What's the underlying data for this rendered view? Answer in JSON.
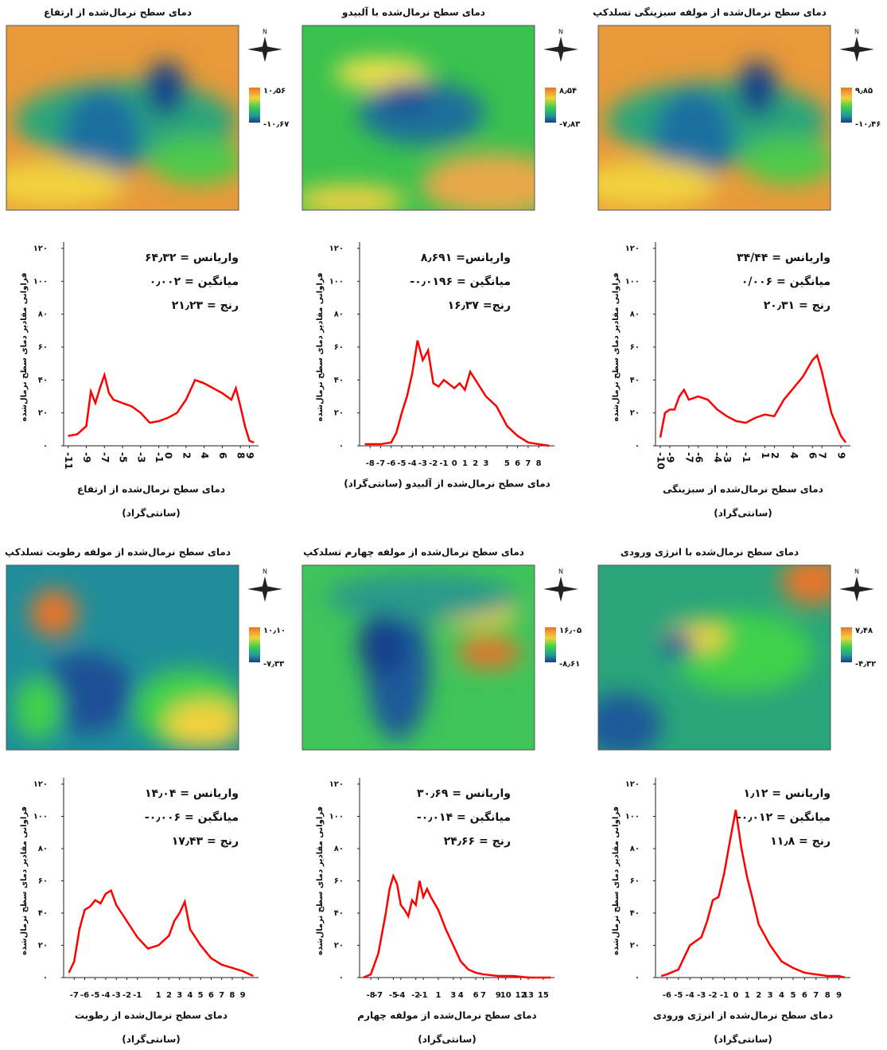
{
  "maps": [
    {
      "title": "دمای سطح نرمال‌شده از ارتفاع",
      "north": "N",
      "legend_max": "۱۰٫۵۶",
      "legend_min": "-۱۰٫۶۷"
    },
    {
      "title": "دمای سطح نرمال‌شده با آلبیدو",
      "north": "N",
      "legend_max": "۸٫۵۴",
      "legend_min": "-۷٫۸۳"
    },
    {
      "title": "دمای سطح نرمال‌شده از مولفه سبزینگی تسلدکپ",
      "north": "N",
      "legend_max": "۹٫۸۵",
      "legend_min": "-۱۰٫۴۶"
    },
    {
      "title": "دمای سطح نرمال‌شده از مولفه رطوبت تسلدکپ",
      "north": "N",
      "legend_max": "۱۰٫۱۰",
      "legend_min": "-۷٫۳۳"
    },
    {
      "title": "دمای سطح نرمال‌شده از مولفه چهارم تسلدکپ",
      "north": "N",
      "legend_max": "۱۶٫۰۵",
      "legend_min": "-۸٫۶۱"
    },
    {
      "title": "دمای سطح نرمال‌شده با انرژی ورودی",
      "north": "N",
      "legend_max": "۷٫۴۸",
      "legend_min": "-۴٫۳۲"
    }
  ],
  "chart_data": [
    {
      "type": "line",
      "color": "#ff0000",
      "ylabel": "فراوانی مقادیر دمای سطح نرمال‌شده",
      "xlabel": "دمای سطح نرمال‌شده از ارتفاع",
      "xunit": "(سانتی‌گراد)",
      "annotations": [
        "۶۴٫۳۲ = واریانس",
        "۰٫۰۰۲ = میانگین",
        "۲۱٫۲۳ = رنج"
      ],
      "x": [
        -11,
        -10,
        -9,
        -8.5,
        -8,
        -7.5,
        -7,
        -6.5,
        -6,
        -5,
        -4,
        -3,
        -2,
        -1,
        0,
        1,
        2,
        3,
        4,
        5,
        6,
        7,
        7.5,
        8,
        8.5,
        9,
        9.5
      ],
      "values": [
        6,
        7,
        12,
        33,
        26,
        35,
        43,
        32,
        28,
        26,
        24,
        20,
        14,
        15,
        17,
        20,
        28,
        40,
        38,
        35,
        32,
        28,
        35,
        24,
        12,
        3,
        2
      ],
      "xlim": [
        -11.5,
        10
      ],
      "xticks": [
        -11,
        -9,
        -7,
        -5,
        -3,
        -1,
        0,
        2,
        4,
        6,
        8,
        9
      ],
      "ylim": [
        0,
        120
      ],
      "yticks": [
        {
          "value": 0,
          "label": "٠"
        },
        {
          "value": 20,
          "label": "۲۰"
        },
        {
          "value": 40,
          "label": "۴۰"
        },
        {
          "value": 60,
          "label": "۶۰"
        },
        {
          "value": 80,
          "label": "۸۰"
        },
        {
          "value": 100,
          "label": "۱۰۰"
        },
        {
          "value": 120,
          "label": "۱۲۰"
        }
      ],
      "rotate_xticks": true
    },
    {
      "type": "line",
      "color": "#ff0000",
      "ylabel": "فراوانی مقادیر دمای سطح نرمال‌شده",
      "xlabel": "دمای سطح نرمال‌شده از آلبیدو (سانتی‌گراد)",
      "annotations": [
        "۸٫۶۹۱ =واریانس",
        "-۰٫۰۱۹۶ = میانگین",
        "۱۶٫۳۷ =رنج"
      ],
      "x": [
        -8.5,
        -7,
        -6,
        -5.5,
        -5,
        -4.5,
        -4,
        -3.5,
        -3,
        -2.5,
        -2,
        -1.5,
        -1,
        0,
        0.5,
        1,
        1.5,
        2,
        3,
        4,
        5,
        6,
        7,
        8,
        9
      ],
      "values": [
        1,
        1,
        2,
        8,
        20,
        30,
        44,
        64,
        52,
        58,
        38,
        36,
        40,
        35,
        38,
        34,
        45,
        40,
        30,
        24,
        12,
        6,
        2,
        1,
        0
      ],
      "xlim": [
        -9,
        9.5
      ],
      "xticks": [
        -8,
        -7,
        -6,
        -5,
        -4,
        -3,
        -2,
        -1,
        0,
        1,
        2,
        3,
        5,
        6,
        7,
        8
      ],
      "ylim": [
        0,
        120
      ],
      "yticks": [
        {
          "value": 0,
          "label": "٠"
        },
        {
          "value": 20,
          "label": "۲۰"
        },
        {
          "value": 40,
          "label": "۴۰"
        },
        {
          "value": 60,
          "label": "۶۰"
        },
        {
          "value": 80,
          "label": "۸۰"
        },
        {
          "value": 100,
          "label": "۱۰۰"
        },
        {
          "value": 120,
          "label": "۱۲۰"
        }
      ],
      "rotate_xticks": false
    },
    {
      "type": "line",
      "color": "#ff0000",
      "ylabel": "فراوانی مقادیر دمای سطح نرمال‌شده",
      "xlabel": "دمای سطح نرمال‌شده از سبزینگی",
      "xunit": "(سانتی‌گراد)",
      "annotations": [
        "۳۴/۴۴ = واریانس",
        "۰/۰۰۶ = میانگین",
        "۲۰٫۳۱ = رنج"
      ],
      "x": [
        -10,
        -9.5,
        -9,
        -8.5,
        -8,
        -7.5,
        -7,
        -6,
        -5,
        -4,
        -3,
        -2,
        -1,
        0,
        1,
        2,
        3,
        4,
        5,
        6,
        6.5,
        7,
        8,
        9,
        9.5
      ],
      "values": [
        5,
        20,
        22,
        22,
        30,
        34,
        28,
        30,
        28,
        22,
        18,
        15,
        14,
        17,
        19,
        18,
        28,
        35,
        42,
        52,
        55,
        45,
        20,
        6,
        2
      ],
      "xlim": [
        -10.5,
        10
      ],
      "xticks": [
        -10,
        -9,
        -7,
        -6,
        -4,
        -3,
        -1,
        1,
        2,
        4,
        6,
        7,
        9
      ],
      "ylim": [
        0,
        120
      ],
      "yticks": [
        {
          "value": 0,
          "label": "٠"
        },
        {
          "value": 20,
          "label": "۲۰"
        },
        {
          "value": 40,
          "label": "۴۰"
        },
        {
          "value": 60,
          "label": "۶۰"
        },
        {
          "value": 80,
          "label": "۸۰"
        },
        {
          "value": 100,
          "label": "۱۰۰"
        },
        {
          "value": 120,
          "label": "۱۲۰"
        }
      ],
      "rotate_xticks": true
    },
    {
      "type": "line",
      "color": "#ff0000",
      "ylabel": "فراوانی مقادیر دمای سطح نرمال‌شده",
      "xlabel": "دمای سطح نرمال‌شده از رطوبت",
      "xunit": "(سانتی‌گراد)",
      "annotations": [
        "۱۴٫۰۴ = واریانس",
        "-۰٫۰۰۶ = میانگین",
        "۱۷٫۴۳ = رنج"
      ],
      "x": [
        -7.5,
        -7,
        -6.5,
        -6,
        -5.5,
        -5,
        -4.5,
        -4,
        -3.5,
        -3,
        -2.5,
        -2,
        -1,
        0,
        1,
        2,
        2.5,
        3,
        3.5,
        4,
        5,
        6,
        7,
        8,
        9,
        10
      ],
      "values": [
        3,
        10,
        30,
        42,
        44,
        48,
        46,
        52,
        54,
        45,
        40,
        35,
        25,
        18,
        20,
        26,
        35,
        40,
        47,
        30,
        20,
        12,
        8,
        6,
        4,
        1
      ],
      "xlim": [
        -8,
        10.5
      ],
      "xticks": [
        -7,
        -6,
        -5,
        -4,
        -3,
        -2,
        -1,
        1,
        2,
        3,
        4,
        5,
        6,
        7,
        8,
        9
      ],
      "ylim": [
        0,
        120
      ],
      "yticks": [
        {
          "value": 0,
          "label": "٠"
        },
        {
          "value": 20,
          "label": "۲۰"
        },
        {
          "value": 40,
          "label": "۴۰"
        },
        {
          "value": 60,
          "label": "۶۰"
        },
        {
          "value": 80,
          "label": "۸۰"
        },
        {
          "value": 100,
          "label": "۱۰۰"
        },
        {
          "value": 120,
          "label": "۱۲۰"
        }
      ],
      "rotate_xticks": false
    },
    {
      "type": "line",
      "color": "#ff0000",
      "ylabel": "فراوانی مقادیر دمای سطح نرمال‌شده",
      "xlabel": "دمای سطح نرمال‌شده از مولفه چهارم",
      "xunit": "(سانتی‌گراد)",
      "annotations": [
        "۳۰٫۶۹ = واریانس",
        "-۰٫۰۱۴ = میانگین",
        "۲۴٫۶۶ = رنج"
      ],
      "x": [
        -9,
        -8,
        -7,
        -6,
        -5.5,
        -5,
        -4.5,
        -4,
        -3.5,
        -3,
        -2.5,
        -2,
        -1.5,
        -1,
        -0.5,
        0,
        1,
        2,
        3,
        4,
        5,
        6,
        7,
        9,
        11,
        13,
        15,
        16
      ],
      "values": [
        0,
        2,
        15,
        40,
        55,
        63,
        58,
        45,
        42,
        38,
        48,
        45,
        60,
        50,
        55,
        50,
        42,
        30,
        20,
        10,
        5,
        3,
        2,
        1,
        1,
        0,
        0,
        0
      ],
      "xlim": [
        -9.5,
        16.5
      ],
      "xticks": [
        -8,
        -7,
        -5,
        -4,
        -2,
        -1,
        1,
        3,
        4,
        6,
        7,
        9,
        10,
        12,
        13,
        15
      ],
      "ylim": [
        0,
        120
      ],
      "yticks": [
        {
          "value": 0,
          "label": "٠"
        },
        {
          "value": 20,
          "label": "۲۰"
        },
        {
          "value": 40,
          "label": "۴۰"
        },
        {
          "value": 60,
          "label": "۶۰"
        },
        {
          "value": 80,
          "label": "۸۰"
        },
        {
          "value": 100,
          "label": "۱۰۰"
        },
        {
          "value": 120,
          "label": "۱۲۰"
        }
      ],
      "rotate_xticks": false
    },
    {
      "type": "line",
      "color": "#ff0000",
      "ylabel": "فراوانی مقادیر دمای سطح نرمال‌شده",
      "xlabel": "دمای سطح نرمال‌شده از انرژی ورودی",
      "xunit": "(سانتی‌گراد)",
      "annotations": [
        "۱٫۱۲ = واریانس",
        "-۰٫۰۱۲ = میانگین",
        "۱۱٫۸ = رنج"
      ],
      "x": [
        -6.5,
        -6,
        -5,
        -4,
        -3,
        -2.5,
        -2,
        -1.5,
        -1,
        -0.5,
        0,
        0.5,
        1,
        1.5,
        2,
        3,
        4,
        5,
        6,
        7,
        8,
        9,
        9.5
      ],
      "values": [
        1,
        2,
        5,
        20,
        25,
        35,
        48,
        50,
        65,
        85,
        104,
        80,
        62,
        48,
        33,
        20,
        10,
        6,
        3,
        2,
        1,
        1,
        0
      ],
      "xlim": [
        -7,
        10
      ],
      "xticks": [
        -6,
        -5,
        -4,
        -3,
        -2,
        -1,
        0,
        1,
        2,
        3,
        4,
        5,
        6,
        7,
        8,
        9
      ],
      "ylim": [
        0,
        120
      ],
      "yticks": [
        {
          "value": 0,
          "label": "٠"
        },
        {
          "value": 20,
          "label": "۲۰"
        },
        {
          "value": 40,
          "label": "۴۰"
        },
        {
          "value": 60,
          "label": "۶۰"
        },
        {
          "value": 80,
          "label": "۸۰"
        },
        {
          "value": 100,
          "label": "۱۰۰"
        },
        {
          "value": 120,
          "label": "۱۲۰"
        }
      ],
      "rotate_xticks": false
    }
  ]
}
